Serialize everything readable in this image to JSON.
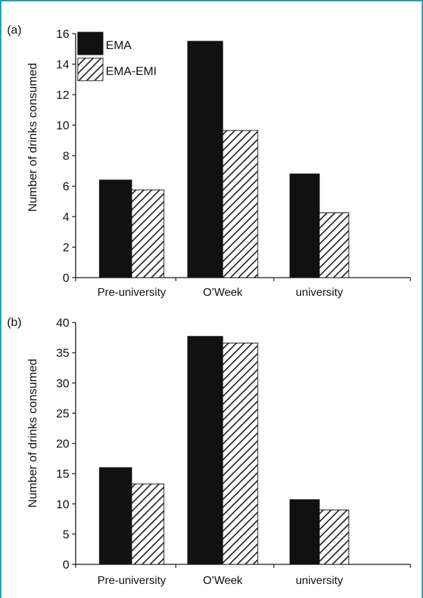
{
  "colors": {
    "frame": "#2a9bb0",
    "ema": "#111111",
    "hatch": "#111111"
  },
  "chart_data": [
    {
      "type": "bar",
      "panel_label": "(a)",
      "categories": [
        "Pre-university",
        "O’Week",
        "university"
      ],
      "series": [
        {
          "name": "EMA",
          "values": [
            6.4,
            15.5,
            6.8
          ]
        },
        {
          "name": "EMA-EMI",
          "values": [
            5.75,
            9.65,
            4.25
          ]
        }
      ],
      "ylabel": "Number of drinks consumed",
      "ylim": [
        0,
        16
      ],
      "yticks": [
        0,
        2,
        4,
        6,
        8,
        10,
        12,
        14,
        16
      ],
      "legend": "top-left",
      "grid": false
    },
    {
      "type": "bar",
      "panel_label": "(b)",
      "categories": [
        "Pre-university",
        "O’Week",
        "university"
      ],
      "series": [
        {
          "name": "EMA",
          "values": [
            16.0,
            37.7,
            10.7
          ]
        },
        {
          "name": "EMA-EMI",
          "values": [
            13.3,
            36.6,
            9.0
          ]
        }
      ],
      "ylabel": "Number of drinks consumed",
      "ylim": [
        0,
        40
      ],
      "yticks": [
        0,
        5,
        10,
        15,
        20,
        25,
        30,
        35,
        40
      ],
      "legend": "none",
      "grid": false
    }
  ]
}
